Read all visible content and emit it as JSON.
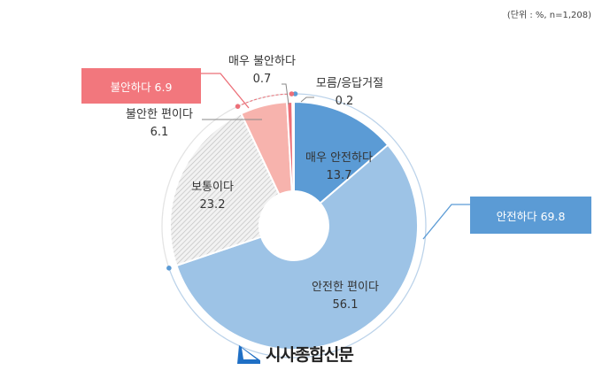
{
  "unit_note": "(단위 : %, n=1,208)",
  "chart_data": {
    "type": "pie",
    "donut": true,
    "start": "top",
    "direction": "clockwise",
    "slices": [
      {
        "label": "매우 안전하다",
        "value": 13.7,
        "color": "#5b9bd5"
      },
      {
        "label": "안전한 편이다",
        "value": 56.1,
        "color": "#9dc3e6"
      },
      {
        "label": "보통이다",
        "value": 23.2,
        "color": "#d9d9d9",
        "pattern": "hatched"
      },
      {
        "label": "불안한 편이다",
        "value": 6.1,
        "color": "#f7b3ad"
      },
      {
        "label": "매우 불안하다",
        "value": 0.7,
        "color": "#ec6f78"
      },
      {
        "label": "모름/응답거절",
        "value": 0.2,
        "color": "#5b9bd5"
      }
    ],
    "groups": [
      {
        "label": "안전하다 69.8",
        "color": "#5b9bd5"
      },
      {
        "label": "불안하다 6.9",
        "color": "#f2777d"
      }
    ]
  },
  "logo": {
    "text": "시사종합신문",
    "color": "#1f6fc5"
  }
}
